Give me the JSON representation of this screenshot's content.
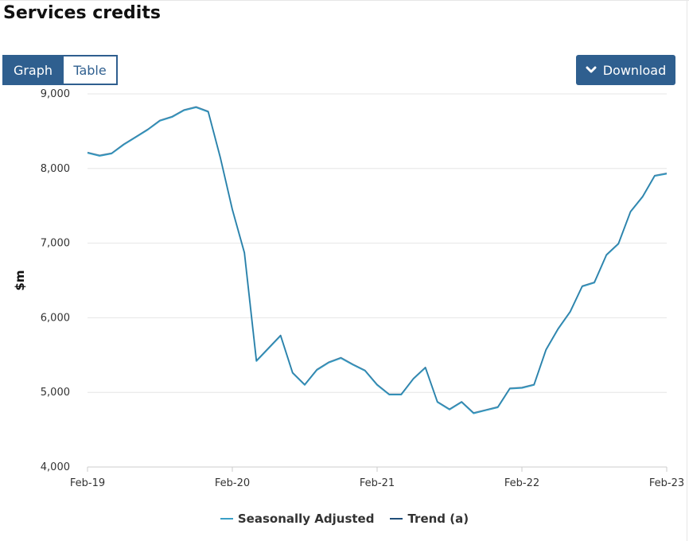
{
  "page": {
    "title": "Services credits"
  },
  "tabs": [
    {
      "label": "Graph",
      "active": true
    },
    {
      "label": "Table",
      "active": false
    }
  ],
  "toolbar": {
    "download_label": "Download",
    "download_icon": "chevron-down-icon"
  },
  "colors": {
    "seasonally_adjusted": "#3a9fc6",
    "trend": "#1f4e79",
    "accent": "#2f5f8f"
  },
  "chart_data": {
    "type": "line",
    "ylabel": "$m",
    "ylim": [
      4000,
      9000
    ],
    "yticks": [
      4000,
      5000,
      6000,
      7000,
      8000,
      9000
    ],
    "ytick_labels": [
      "4,000",
      "5,000",
      "6,000",
      "7,000",
      "8,000",
      "9,000"
    ],
    "xtick_labels": [
      "Feb-19",
      "Feb-20",
      "Feb-21",
      "Feb-22",
      "Feb-23"
    ],
    "grid": true,
    "legend_position": "bottom",
    "x": [
      "Feb-19",
      "Mar-19",
      "Apr-19",
      "May-19",
      "Jun-19",
      "Jul-19",
      "Aug-19",
      "Sep-19",
      "Oct-19",
      "Nov-19",
      "Dec-19",
      "Jan-20",
      "Feb-20",
      "Mar-20",
      "Apr-20",
      "May-20",
      "Jun-20",
      "Jul-20",
      "Aug-20",
      "Sep-20",
      "Oct-20",
      "Nov-20",
      "Dec-20",
      "Jan-21",
      "Feb-21",
      "Mar-21",
      "Apr-21",
      "May-21",
      "Jun-21",
      "Jul-21",
      "Aug-21",
      "Sep-21",
      "Oct-21",
      "Nov-21",
      "Dec-21",
      "Jan-22",
      "Feb-22",
      "Mar-22",
      "Apr-22",
      "May-22",
      "Jun-22",
      "Jul-22",
      "Aug-22",
      "Sep-22",
      "Oct-22",
      "Nov-22",
      "Dec-22",
      "Jan-23",
      "Feb-23"
    ],
    "series": [
      {
        "name": "Seasonally Adjusted",
        "values": [
          8210,
          8170,
          8200,
          8320,
          8420,
          8520,
          8640,
          8690,
          8780,
          8820,
          8760,
          8150,
          7450,
          6870,
          5420,
          5590,
          5760,
          5260,
          5100,
          5300,
          5400,
          5460,
          5370,
          5290,
          5100,
          4970,
          4970,
          5180,
          5330,
          4870,
          4770,
          4870,
          4720,
          4760,
          4800,
          5050,
          5060,
          5100,
          5570,
          5850,
          6080,
          6420,
          6470,
          6840,
          6990,
          7420,
          7620,
          7900,
          7930
        ]
      },
      {
        "name": "Trend (a)",
        "values": [
          8220,
          8180,
          8210,
          8330,
          8430,
          8530,
          8650,
          8700,
          8790,
          8830,
          8770,
          8160,
          7460,
          6880,
          5430,
          5600,
          5770,
          5270,
          5110,
          5310,
          5410,
          5470,
          5380,
          5300,
          5110,
          4980,
          4980,
          5190,
          5340,
          4880,
          4780,
          4880,
          4730,
          4770,
          4810,
          5060,
          5070,
          5110,
          5580,
          5860,
          6090,
          6430,
          6480,
          6850,
          7000,
          7430,
          7630,
          7910,
          7940
        ]
      }
    ]
  }
}
